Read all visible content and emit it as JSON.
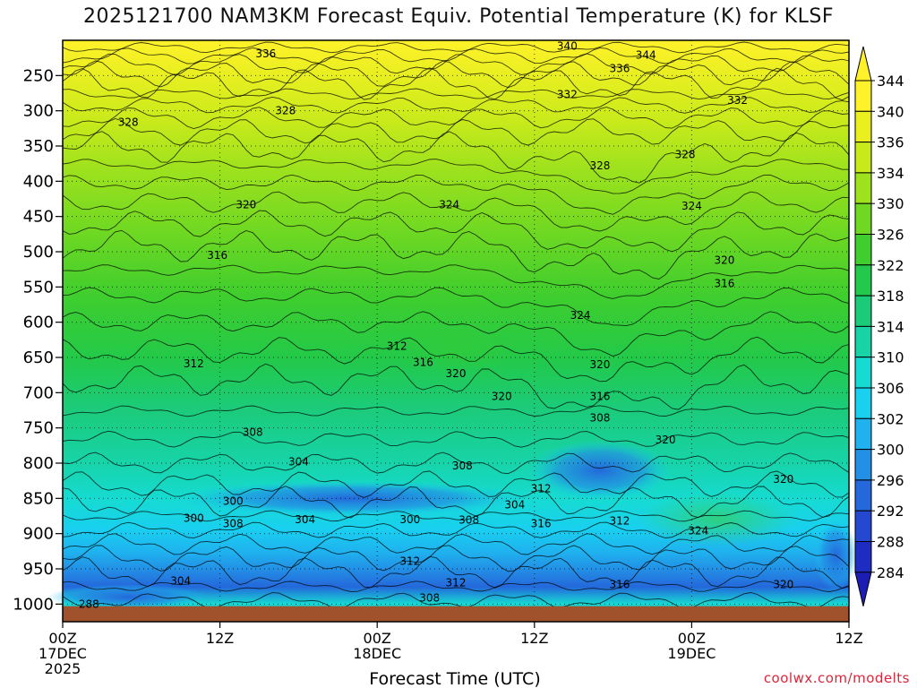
{
  "chart_data": {
    "type": "heatmap",
    "title": "2025121700 NAM3KM Forecast Equiv. Potential Temperature (K) for KLSF",
    "xlabel": "Forecast Time (UTC)",
    "ylabel": "",
    "x_ticks": [
      {
        "hour": 0,
        "lines": [
          "00Z",
          "17DEC",
          "2025"
        ]
      },
      {
        "hour": 12,
        "lines": [
          "12Z"
        ]
      },
      {
        "hour": 24,
        "lines": [
          "00Z",
          "18DEC"
        ]
      },
      {
        "hour": 36,
        "lines": [
          "12Z"
        ]
      },
      {
        "hour": 48,
        "lines": [
          "00Z",
          "19DEC"
        ]
      },
      {
        "hour": 60,
        "lines": [
          "12Z"
        ]
      }
    ],
    "xlim": [
      0,
      60
    ],
    "y_ticks": [
      250,
      300,
      350,
      400,
      450,
      500,
      550,
      600,
      650,
      700,
      750,
      800,
      850,
      900,
      950,
      1000
    ],
    "ylim_hPa": [
      200,
      1025
    ],
    "colorbar": {
      "unit": "K",
      "labels": [
        "344",
        "340",
        "336",
        "334",
        "330",
        "326",
        "322",
        "318",
        "314",
        "310",
        "306",
        "302",
        "300",
        "296",
        "292",
        "288",
        "284"
      ],
      "colors": [
        "#fff22a",
        "#eaf01f",
        "#c8ea1b",
        "#9ee21d",
        "#6fd822",
        "#3fce2e",
        "#22c94a",
        "#1ccb78",
        "#17d3a5",
        "#16dbd2",
        "#19d0ef",
        "#1fb2ef",
        "#238fe5",
        "#2468db",
        "#2448cf",
        "#1f2cc2",
        "#1b1db4"
      ]
    },
    "contour_labels": [
      {
        "text": "340",
        "t": 38.5,
        "p": 208
      },
      {
        "text": "336",
        "t": 15.5,
        "p": 219
      },
      {
        "text": "344",
        "t": 44.5,
        "p": 221
      },
      {
        "text": "336",
        "t": 42.5,
        "p": 240
      },
      {
        "text": "332",
        "t": 38.5,
        "p": 277
      },
      {
        "text": "332",
        "t": 51.5,
        "p": 285
      },
      {
        "text": "328",
        "t": 17.0,
        "p": 300
      },
      {
        "text": "328",
        "t": 5.0,
        "p": 316
      },
      {
        "text": "328",
        "t": 47.5,
        "p": 362
      },
      {
        "text": "328",
        "t": 41.0,
        "p": 378
      },
      {
        "text": "324",
        "t": 29.5,
        "p": 433
      },
      {
        "text": "324",
        "t": 48.0,
        "p": 435
      },
      {
        "text": "320",
        "t": 14.0,
        "p": 433
      },
      {
        "text": "316",
        "t": 11.8,
        "p": 505
      },
      {
        "text": "320",
        "t": 50.5,
        "p": 512
      },
      {
        "text": "316",
        "t": 50.5,
        "p": 545
      },
      {
        "text": "324",
        "t": 39.5,
        "p": 590
      },
      {
        "text": "312",
        "t": 25.5,
        "p": 634
      },
      {
        "text": "316",
        "t": 27.5,
        "p": 657
      },
      {
        "text": "312",
        "t": 10.0,
        "p": 659
      },
      {
        "text": "320",
        "t": 30.0,
        "p": 673
      },
      {
        "text": "320",
        "t": 41.0,
        "p": 660
      },
      {
        "text": "320",
        "t": 33.5,
        "p": 705
      },
      {
        "text": "316",
        "t": 41.0,
        "p": 705
      },
      {
        "text": "308",
        "t": 41.0,
        "p": 736
      },
      {
        "text": "308",
        "t": 14.5,
        "p": 756
      },
      {
        "text": "320",
        "t": 46.0,
        "p": 767
      },
      {
        "text": "304",
        "t": 18.0,
        "p": 798
      },
      {
        "text": "308",
        "t": 30.5,
        "p": 804
      },
      {
        "text": "312",
        "t": 36.5,
        "p": 836
      },
      {
        "text": "300",
        "t": 13.0,
        "p": 854
      },
      {
        "text": "320",
        "t": 55.0,
        "p": 823
      },
      {
        "text": "304",
        "t": 34.5,
        "p": 859
      },
      {
        "text": "300",
        "t": 10.0,
        "p": 878
      },
      {
        "text": "308",
        "t": 13.0,
        "p": 886
      },
      {
        "text": "304",
        "t": 18.5,
        "p": 880
      },
      {
        "text": "300",
        "t": 26.5,
        "p": 880
      },
      {
        "text": "308",
        "t": 31.0,
        "p": 881
      },
      {
        "text": "316",
        "t": 36.5,
        "p": 886
      },
      {
        "text": "312",
        "t": 42.5,
        "p": 882
      },
      {
        "text": "324",
        "t": 48.5,
        "p": 896
      },
      {
        "text": "312",
        "t": 26.5,
        "p": 939
      },
      {
        "text": "304",
        "t": 9.0,
        "p": 967
      },
      {
        "text": "312",
        "t": 30.0,
        "p": 970
      },
      {
        "text": "316",
        "t": 42.5,
        "p": 972
      },
      {
        "text": "320",
        "t": 55.0,
        "p": 972
      },
      {
        "text": "308",
        "t": 28.0,
        "p": 991
      },
      {
        "text": "288",
        "t": 2.0,
        "p": 1000
      }
    ],
    "legend": "colorbar-right",
    "grid": true
  },
  "watermark": "coolwx.com/modelts"
}
